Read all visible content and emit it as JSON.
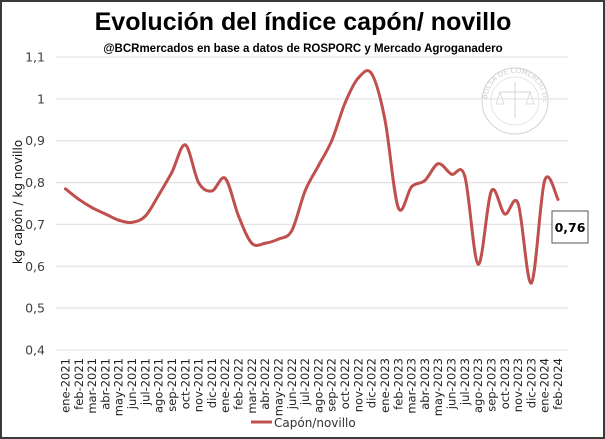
{
  "chart_data": {
    "type": "line",
    "title": "Evolución del índice capón/ novillo",
    "subtitle": "@BCRmercados  en base a datos de ROSPORC y Mercado Agroganadero",
    "xlabel": "",
    "ylabel": "kg capón / kg novillo",
    "ylim": [
      0.4,
      1.1
    ],
    "yticks": [
      0.4,
      0.5,
      0.6,
      0.7,
      0.8,
      0.9,
      1.0,
      1.1
    ],
    "ytick_labels": [
      "0,4",
      "0,5",
      "0,6",
      "0,7",
      "0,8",
      "0,9",
      "1",
      "1,1"
    ],
    "grid": true,
    "legend_position": "bottom",
    "categories": [
      "ene-2021",
      "feb-2021",
      "mar-2021",
      "abr-2021",
      "may-2021",
      "jun-2021",
      "jul-2021",
      "ago-2021",
      "sep-2021",
      "oct-2021",
      "nov-2021",
      "dic-2021",
      "ene-2022",
      "feb-2022",
      "mar-2022",
      "abr-2022",
      "may-2022",
      "jun-2022",
      "jul-2022",
      "ago-2022",
      "sep-2022",
      "oct-2022",
      "nov-2022",
      "dic-2022",
      "ene-2023",
      "feb-2023",
      "mar-2023",
      "abr-2023",
      "may-2023",
      "jun-2023",
      "jul-2023",
      "ago-2023",
      "sep-2023",
      "oct-2023",
      "nov-2023",
      "dic-2023",
      "ene-2024",
      "feb-2024"
    ],
    "series": [
      {
        "name": "Capón/novillo",
        "color": "#c0504d",
        "values": [
          0.785,
          0.76,
          0.74,
          0.725,
          0.71,
          0.705,
          0.72,
          0.77,
          0.825,
          0.89,
          0.8,
          0.78,
          0.81,
          0.72,
          0.655,
          0.655,
          0.665,
          0.685,
          0.78,
          0.84,
          0.9,
          0.99,
          1.05,
          1.06,
          0.95,
          0.74,
          0.79,
          0.805,
          0.845,
          0.82,
          0.815,
          0.605,
          0.78,
          0.725,
          0.75,
          0.56,
          0.805,
          0.76
        ]
      }
    ],
    "annotations": [
      {
        "label": "0,76",
        "category": "feb-2024"
      }
    ],
    "watermark": "BOLSA DE COMERCIO DE ROSARIO"
  }
}
